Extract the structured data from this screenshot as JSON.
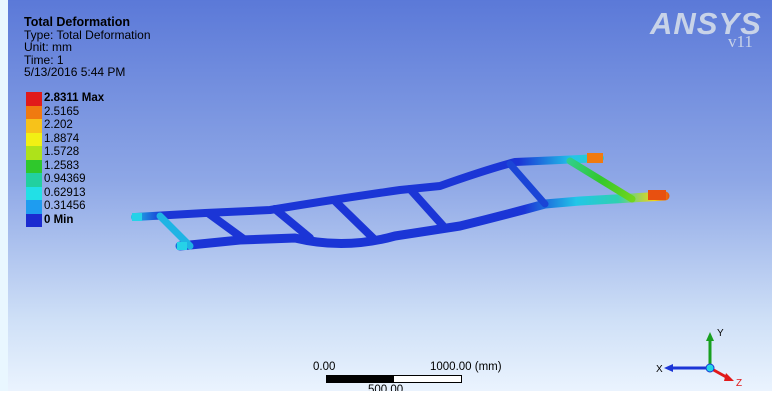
{
  "result": {
    "title": "Total Deformation",
    "type": "Type: Total Deformation",
    "unit": "Unit: mm",
    "time": "Time: 1",
    "date": "5/13/2016 5:44 PM"
  },
  "legend": {
    "items": [
      {
        "label": "2.8311 Max",
        "color": "#e11a1a"
      },
      {
        "label": "2.5165",
        "color": "#f07a10"
      },
      {
        "label": "2.202",
        "color": "#f7c21a"
      },
      {
        "label": "1.8874",
        "color": "#f2f014"
      },
      {
        "label": "1.5728",
        "color": "#aee21a"
      },
      {
        "label": "1.2583",
        "color": "#2fc82c"
      },
      {
        "label": "0.94369",
        "color": "#22d0a0"
      },
      {
        "label": "0.62913",
        "color": "#22e0e6"
      },
      {
        "label": "0.31456",
        "color": "#1e9cf0"
      },
      {
        "label": "0 Min",
        "color": "#1b2bd0"
      }
    ]
  },
  "branding": {
    "logo": "ANSYS",
    "version": "v11"
  },
  "scale": {
    "left": "0.00",
    "right": "1000.00 (mm)",
    "mid": "500.00"
  },
  "triad": {
    "x": "X",
    "y": "Y",
    "z": "Z"
  },
  "icons": [
    "triad-icon"
  ]
}
